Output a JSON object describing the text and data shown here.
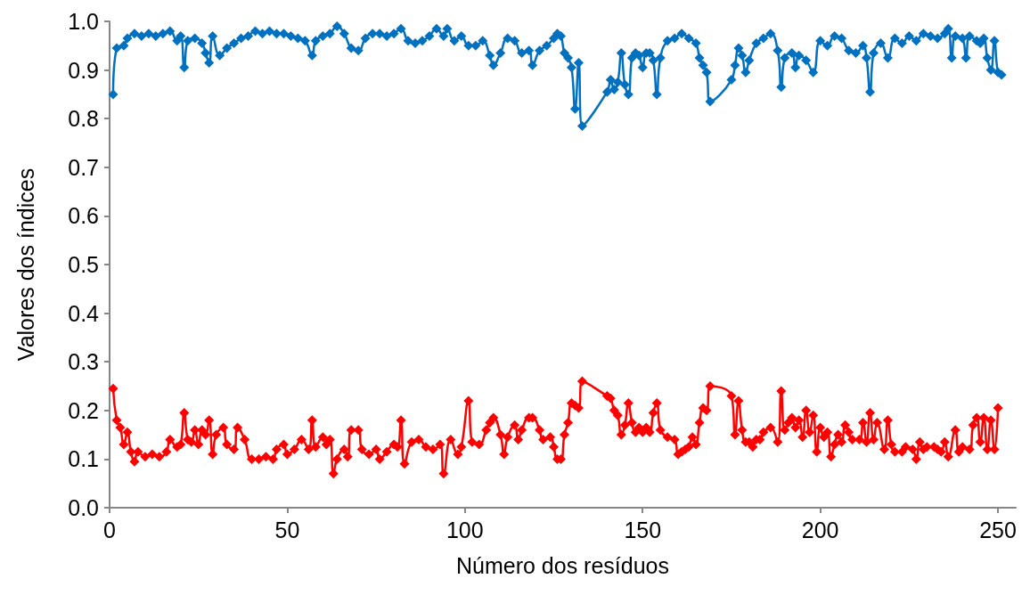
{
  "chart_data": {
    "type": "line",
    "xlabel": "Número dos resíduos",
    "ylabel": "Valores dos índices",
    "xlim": [
      0,
      255
    ],
    "xticks": [
      0,
      50,
      100,
      150,
      200,
      250
    ],
    "ylim": [
      0,
      1
    ],
    "yticks": [
      {
        "value": 0,
        "label": "0.0"
      },
      0.1,
      0.2,
      0.3,
      0.4,
      0.5,
      0.6,
      0.7,
      0.8,
      0.9,
      {
        "value": 1,
        "label": "1.0"
      }
    ],
    "grid": false,
    "marker": "diamond",
    "line_style": "solid",
    "series": [
      {
        "color": "#0070c0",
        "x": [
          1,
          2,
          4,
          5,
          7,
          9,
          11,
          13,
          15,
          17,
          19,
          20,
          21,
          22,
          24,
          26,
          27,
          28,
          29,
          31,
          33,
          35,
          37,
          39,
          41,
          43,
          45,
          47,
          49,
          51,
          53,
          55,
          57,
          58,
          60,
          62,
          64,
          66,
          68,
          70,
          72,
          74,
          76,
          78,
          80,
          82,
          84,
          86,
          88,
          90,
          92,
          94,
          95,
          97,
          99,
          101,
          103,
          105,
          107,
          108,
          110,
          112,
          114,
          116,
          118,
          119,
          121,
          123,
          125,
          126,
          127,
          128,
          129,
          130,
          131,
          132,
          133,
          140,
          141,
          142,
          143,
          144,
          145,
          146,
          147,
          148,
          149,
          150,
          151,
          152,
          153,
          154,
          155,
          157,
          159,
          161,
          163,
          165,
          166,
          167,
          168,
          169,
          175,
          176,
          177,
          178,
          179,
          180,
          182,
          184,
          186,
          188,
          189,
          190,
          192,
          193,
          194,
          196,
          198,
          200,
          202,
          204,
          206,
          208,
          210,
          212,
          213,
          214,
          215,
          217,
          219,
          221,
          223,
          225,
          227,
          229,
          231,
          233,
          235,
          236,
          237,
          238,
          240,
          241,
          242,
          244,
          245,
          246,
          247,
          248,
          249,
          250,
          251
        ],
        "values": [
          0.85,
          0.945,
          0.95,
          0.965,
          0.975,
          0.97,
          0.975,
          0.97,
          0.975,
          0.98,
          0.96,
          0.97,
          0.905,
          0.96,
          0.965,
          0.955,
          0.935,
          0.915,
          0.97,
          0.93,
          0.945,
          0.955,
          0.965,
          0.97,
          0.98,
          0.975,
          0.98,
          0.975,
          0.975,
          0.97,
          0.965,
          0.96,
          0.93,
          0.96,
          0.97,
          0.975,
          0.99,
          0.975,
          0.945,
          0.94,
          0.965,
          0.975,
          0.975,
          0.97,
          0.975,
          0.985,
          0.96,
          0.955,
          0.96,
          0.97,
          0.985,
          0.97,
          0.985,
          0.96,
          0.97,
          0.95,
          0.95,
          0.96,
          0.93,
          0.91,
          0.935,
          0.965,
          0.96,
          0.935,
          0.94,
          0.91,
          0.94,
          0.95,
          0.965,
          0.975,
          0.97,
          0.935,
          0.925,
          0.905,
          0.82,
          0.915,
          0.785,
          0.855,
          0.88,
          0.86,
          0.875,
          0.935,
          0.87,
          0.85,
          0.925,
          0.935,
          0.93,
          0.905,
          0.935,
          0.935,
          0.92,
          0.85,
          0.925,
          0.96,
          0.965,
          0.975,
          0.965,
          0.955,
          0.925,
          0.91,
          0.895,
          0.835,
          0.88,
          0.91,
          0.945,
          0.93,
          0.895,
          0.92,
          0.955,
          0.965,
          0.975,
          0.94,
          0.865,
          0.925,
          0.935,
          0.905,
          0.93,
          0.92,
          0.895,
          0.96,
          0.95,
          0.97,
          0.965,
          0.94,
          0.935,
          0.95,
          0.925,
          0.855,
          0.935,
          0.955,
          0.925,
          0.965,
          0.955,
          0.97,
          0.96,
          0.975,
          0.97,
          0.965,
          0.975,
          0.985,
          0.925,
          0.97,
          0.965,
          0.925,
          0.97,
          0.96,
          0.955,
          0.965,
          0.925,
          0.9,
          0.96,
          0.895,
          0.89
        ]
      },
      {
        "color": "#ff0000",
        "x": [
          1,
          2,
          3,
          4,
          5,
          6,
          7,
          8,
          10,
          12,
          14,
          16,
          17,
          19,
          20,
          21,
          22,
          23,
          24,
          25,
          26,
          27,
          28,
          29,
          30,
          32,
          33,
          35,
          36,
          38,
          40,
          42,
          44,
          46,
          47,
          49,
          50,
          52,
          54,
          56,
          57,
          58,
          60,
          61,
          62,
          63,
          64,
          66,
          67,
          68,
          70,
          71,
          73,
          75,
          76,
          78,
          80,
          81,
          82,
          83,
          85,
          87,
          89,
          91,
          93,
          94,
          96,
          98,
          99,
          101,
          102,
          104,
          106,
          107,
          108,
          110,
          111,
          112,
          114,
          115,
          116,
          118,
          119,
          121,
          122,
          124,
          125,
          126,
          127,
          128,
          129,
          130,
          131,
          132,
          133,
          140,
          141,
          142,
          143,
          144,
          145,
          146,
          147,
          148,
          149,
          150,
          151,
          152,
          153,
          154,
          155,
          157,
          159,
          160,
          161,
          162,
          163,
          164,
          165,
          166,
          167,
          168,
          169,
          175,
          176,
          177,
          178,
          179,
          180,
          181,
          182,
          183,
          184,
          186,
          188,
          189,
          190,
          191,
          192,
          193,
          194,
          195,
          196,
          197,
          198,
          199,
          200,
          201,
          202,
          203,
          204,
          205,
          206,
          207,
          208,
          209,
          211,
          212,
          213,
          214,
          215,
          216,
          218,
          219,
          220,
          221,
          223,
          224,
          226,
          227,
          228,
          229,
          230,
          232,
          233,
          234,
          235,
          236,
          238,
          239,
          240,
          242,
          243,
          244,
          245,
          246,
          247,
          248,
          249,
          250
        ],
        "values": [
          0.245,
          0.18,
          0.165,
          0.13,
          0.155,
          0.115,
          0.095,
          0.115,
          0.105,
          0.11,
          0.105,
          0.115,
          0.14,
          0.125,
          0.13,
          0.195,
          0.14,
          0.135,
          0.16,
          0.13,
          0.16,
          0.15,
          0.18,
          0.11,
          0.15,
          0.165,
          0.13,
          0.12,
          0.165,
          0.14,
          0.1,
          0.1,
          0.105,
          0.1,
          0.12,
          0.13,
          0.11,
          0.12,
          0.14,
          0.12,
          0.18,
          0.125,
          0.145,
          0.13,
          0.14,
          0.07,
          0.1,
          0.12,
          0.105,
          0.16,
          0.16,
          0.12,
          0.11,
          0.12,
          0.1,
          0.115,
          0.13,
          0.125,
          0.18,
          0.09,
          0.135,
          0.14,
          0.125,
          0.12,
          0.13,
          0.07,
          0.14,
          0.11,
          0.125,
          0.22,
          0.135,
          0.13,
          0.16,
          0.175,
          0.185,
          0.15,
          0.11,
          0.145,
          0.17,
          0.14,
          0.16,
          0.185,
          0.185,
          0.16,
          0.14,
          0.145,
          0.125,
          0.1,
          0.1,
          0.15,
          0.175,
          0.215,
          0.21,
          0.205,
          0.26,
          0.23,
          0.225,
          0.2,
          0.19,
          0.15,
          0.17,
          0.215,
          0.175,
          0.155,
          0.165,
          0.155,
          0.165,
          0.155,
          0.195,
          0.215,
          0.16,
          0.145,
          0.14,
          0.11,
          0.115,
          0.12,
          0.125,
          0.145,
          0.13,
          0.175,
          0.205,
          0.2,
          0.25,
          0.23,
          0.15,
          0.22,
          0.16,
          0.135,
          0.135,
          0.125,
          0.14,
          0.14,
          0.155,
          0.165,
          0.135,
          0.24,
          0.16,
          0.175,
          0.185,
          0.165,
          0.18,
          0.145,
          0.2,
          0.155,
          0.19,
          0.115,
          0.165,
          0.145,
          0.155,
          0.105,
          0.13,
          0.15,
          0.135,
          0.17,
          0.155,
          0.14,
          0.14,
          0.175,
          0.135,
          0.195,
          0.14,
          0.175,
          0.12,
          0.18,
          0.13,
          0.115,
          0.115,
          0.125,
          0.12,
          0.1,
          0.135,
          0.12,
          0.125,
          0.125,
          0.12,
          0.115,
          0.135,
          0.105,
          0.16,
          0.115,
          0.125,
          0.12,
          0.17,
          0.185,
          0.135,
          0.185,
          0.12,
          0.18,
          0.12,
          0.205
        ]
      }
    ]
  }
}
